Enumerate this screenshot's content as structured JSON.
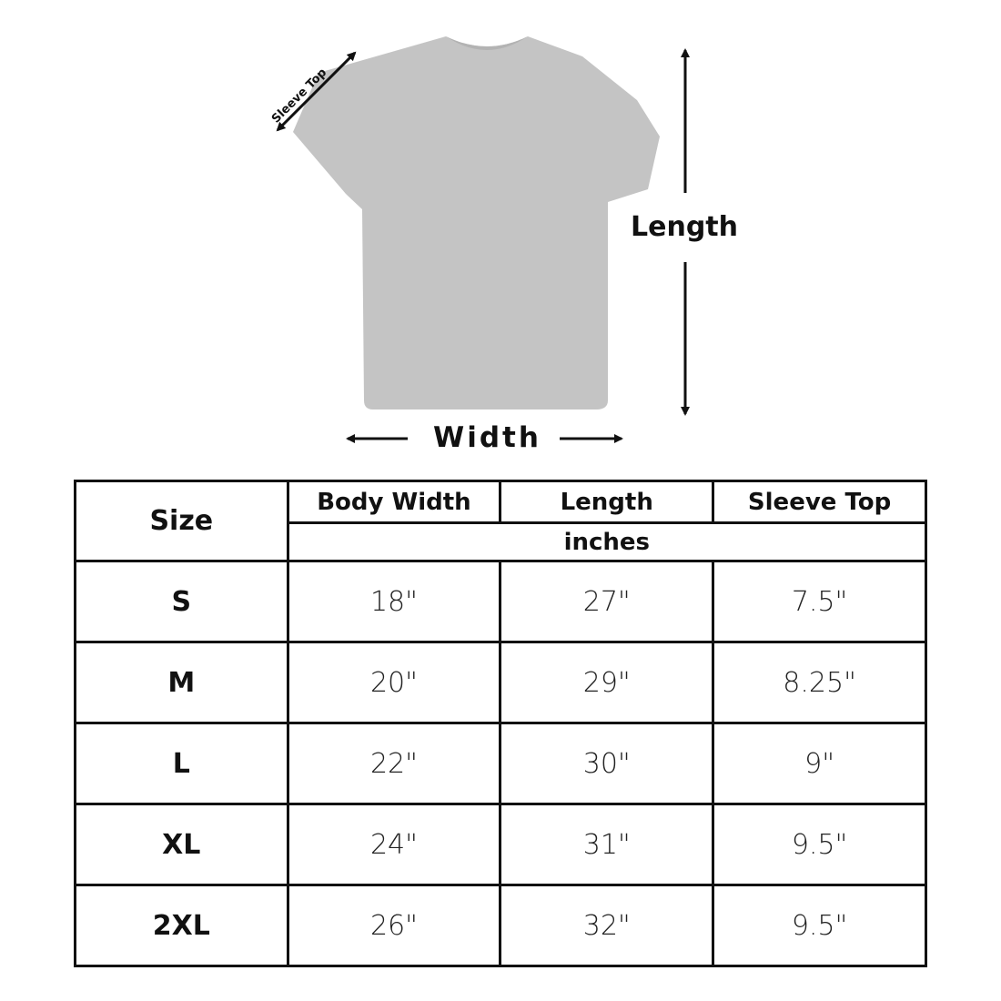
{
  "diagram": {
    "sleeve_label": "Sleeve Top",
    "length_label": "Length",
    "width_label": "Width",
    "shirt_color": "#c4c4c4"
  },
  "table": {
    "headers": {
      "size": "Size",
      "body_width": "Body Width",
      "length": "Length",
      "sleeve_top": "Sleeve Top",
      "unit": "inches"
    },
    "rows": [
      {
        "size": "S",
        "body_width": "18\"",
        "length": "27\"",
        "sleeve_top": "7.5\""
      },
      {
        "size": "M",
        "body_width": "20\"",
        "length": "29\"",
        "sleeve_top": "8.25\""
      },
      {
        "size": "L",
        "body_width": "22\"",
        "length": "30\"",
        "sleeve_top": "9\""
      },
      {
        "size": "XL",
        "body_width": "24\"",
        "length": "31\"",
        "sleeve_top": "9.5\""
      },
      {
        "size": "2XL",
        "body_width": "26\"",
        "length": "32\"",
        "sleeve_top": "9.5\""
      }
    ]
  }
}
